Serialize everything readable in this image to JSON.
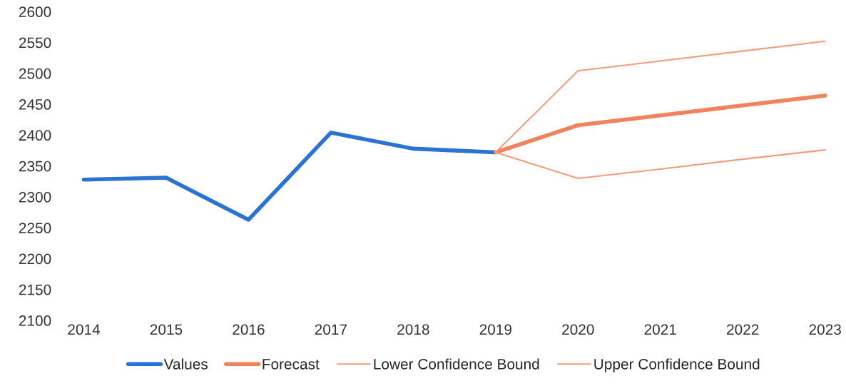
{
  "chart_data": {
    "type": "line",
    "categories": [
      "2014",
      "2015",
      "2016",
      "2017",
      "2018",
      "2019",
      "2020",
      "2021",
      "2022",
      "2023"
    ],
    "series": [
      {
        "name": "Values",
        "color": "#2b73d2",
        "values": [
          2328,
          2331,
          2263,
          2404,
          2378,
          2372,
          null,
          null,
          null,
          null
        ]
      },
      {
        "name": "Forecast",
        "color": "#f2825e",
        "values": [
          null,
          null,
          null,
          null,
          null,
          2372,
          2416,
          2432,
          2448,
          2464
        ]
      },
      {
        "name": "Lower Confidence Bound",
        "color": "#f59a7c",
        "values": [
          null,
          null,
          null,
          null,
          null,
          2372,
          2330,
          2345,
          2361,
          2376
        ]
      },
      {
        "name": "Upper Confidence Bound",
        "color": "#f59a7c",
        "values": [
          null,
          null,
          null,
          null,
          null,
          2372,
          2504,
          2520,
          2536,
          2552
        ]
      }
    ],
    "ylim": [
      2100,
      2600
    ],
    "yticks": [
      2100,
      2150,
      2200,
      2250,
      2300,
      2350,
      2400,
      2450,
      2500,
      2550,
      2600
    ],
    "grid": false,
    "legend": "bottom",
    "marker": "none",
    "line_style": "solid"
  }
}
